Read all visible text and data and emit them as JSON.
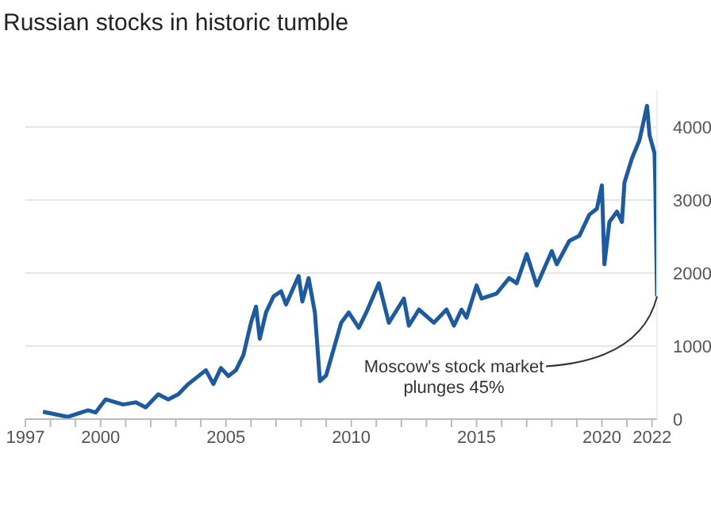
{
  "chart_data": {
    "type": "line",
    "title": "Russian stocks in historic tumble",
    "x": [
      1997.7,
      1998.7,
      1999.5,
      1999.8,
      2000.2,
      2000.9,
      2001.4,
      2001.8,
      2002.3,
      2002.7,
      2003.1,
      2003.5,
      2004.2,
      2004.5,
      2004.8,
      2005.1,
      2005.4,
      2005.7,
      2006.0,
      2006.2,
      2006.35,
      2006.6,
      2006.9,
      2007.2,
      2007.4,
      2007.9,
      2008.05,
      2008.3,
      2008.55,
      2008.75,
      2009.0,
      2009.3,
      2009.6,
      2009.9,
      2010.3,
      2010.6,
      2011.1,
      2011.5,
      2012.1,
      2012.3,
      2012.7,
      2013.3,
      2013.8,
      2014.1,
      2014.4,
      2014.6,
      2015.0,
      2015.2,
      2015.8,
      2016.3,
      2016.6,
      2017.0,
      2017.4,
      2018.0,
      2018.2,
      2018.7,
      2019.1,
      2019.5,
      2019.8,
      2020.0,
      2020.1,
      2020.3,
      2020.6,
      2020.8,
      2020.9,
      2021.2,
      2021.5,
      2021.8,
      2021.9,
      2022.1,
      2022.13,
      2022.2
    ],
    "series": [
      {
        "color": "#1d5a9e",
        "values": [
          100,
          30,
          120,
          90,
          270,
          200,
          230,
          160,
          340,
          270,
          340,
          480,
          670,
          480,
          700,
          590,
          670,
          880,
          1320,
          1540,
          1100,
          1460,
          1680,
          1750,
          1570,
          1960,
          1610,
          1930,
          1460,
          520,
          600,
          960,
          1320,
          1460,
          1250,
          1460,
          1860,
          1320,
          1650,
          1280,
          1500,
          1320,
          1500,
          1280,
          1500,
          1390,
          1830,
          1650,
          1720,
          1930,
          1860,
          2260,
          1830,
          2300,
          2120,
          2440,
          2510,
          2800,
          2880,
          3200,
          2120,
          2700,
          2840,
          2700,
          3240,
          3570,
          3820,
          4290,
          3890,
          3640,
          3240,
          1680
        ]
      }
    ],
    "xlim": [
      1997,
      2022.2
    ],
    "xticks": [
      1997,
      {
        "value": 1998,
        "label": null
      },
      {
        "value": 1999,
        "label": null
      },
      2000,
      {
        "value": 2001,
        "label": null
      },
      {
        "value": 2002,
        "label": null
      },
      {
        "value": 2003,
        "label": null
      },
      {
        "value": 2004,
        "label": null
      },
      2005,
      {
        "value": 2006,
        "label": null
      },
      {
        "value": 2007,
        "label": null
      },
      {
        "value": 2008,
        "label": null
      },
      {
        "value": 2009,
        "label": null
      },
      2010,
      {
        "value": 2011,
        "label": null
      },
      {
        "value": 2012,
        "label": null
      },
      {
        "value": 2013,
        "label": null
      },
      {
        "value": 2014,
        "label": null
      },
      2015,
      {
        "value": 2016,
        "label": null
      },
      {
        "value": 2017,
        "label": null
      },
      {
        "value": 2018,
        "label": null
      },
      {
        "value": 2019,
        "label": null
      },
      2020,
      {
        "value": 2021,
        "label": null
      },
      2022
    ],
    "ylim": [
      0,
      4500
    ],
    "yticks": [
      0,
      1000,
      2000,
      3000,
      4000
    ],
    "grid": "y",
    "annotations": [
      {
        "text": "Moscow's stock market plunges 45%",
        "x": 2022.2,
        "y": 1680
      }
    ]
  }
}
